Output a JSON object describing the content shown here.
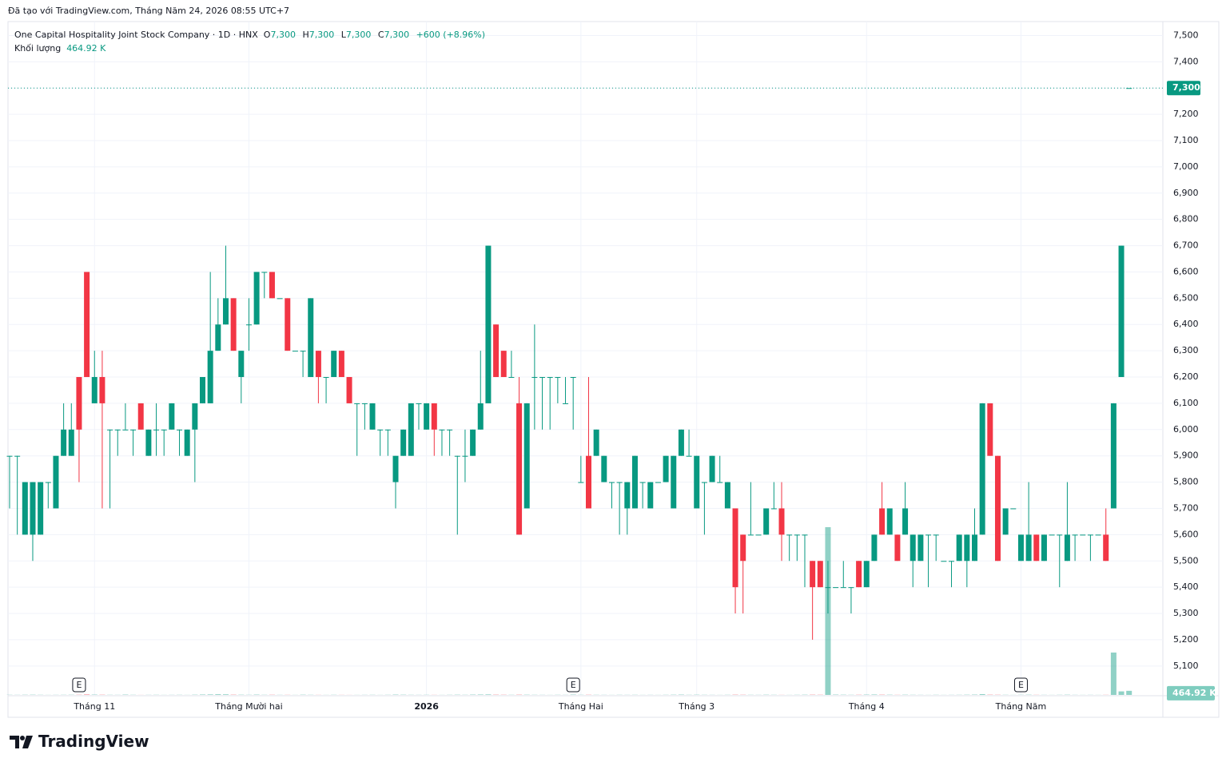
{
  "header": {
    "created": "Đã tạo với TradingView.com, Tháng Năm 24, 2026 08:55 UTC+7"
  },
  "legend": {
    "symbol": "One Capital Hospitality Joint Stock Company · 1D · HNX",
    "open": {
      "label": "O",
      "value": "7,300"
    },
    "high": {
      "label": "H",
      "value": "7,300"
    },
    "low": {
      "label": "L",
      "value": "7,300"
    },
    "close": {
      "label": "C",
      "value": "7,300"
    },
    "change": "+600 (+8.96%)",
    "volume_label": "Khối lượng",
    "volume_value": "464.92 K"
  },
  "footer": {
    "brand": "TradingView"
  },
  "chart_data": {
    "type": "candlestick",
    "up_color": "#089981",
    "down_color": "#f23645",
    "grid": true,
    "ylim": [
      4990,
      7550
    ],
    "yticks": [
      {
        "value": 5100,
        "label": "5,100"
      },
      {
        "value": 5200,
        "label": "5,200"
      },
      {
        "value": 5300,
        "label": "5,300"
      },
      {
        "value": 5400,
        "label": "5,400"
      },
      {
        "value": 5500,
        "label": "5,500"
      },
      {
        "value": 5600,
        "label": "5,600"
      },
      {
        "value": 5700,
        "label": "5,700"
      },
      {
        "value": 5800,
        "label": "5,800"
      },
      {
        "value": 5900,
        "label": "5,900"
      },
      {
        "value": 6000,
        "label": "6,000"
      },
      {
        "value": 6100,
        "label": "6,100"
      },
      {
        "value": 6200,
        "label": "6,200"
      },
      {
        "value": 6300,
        "label": "6,300"
      },
      {
        "value": 6400,
        "label": "6,400"
      },
      {
        "value": 6500,
        "label": "6,500"
      },
      {
        "value": 6600,
        "label": "6,600"
      },
      {
        "value": 6700,
        "label": "6,700"
      },
      {
        "value": 6800,
        "label": "6,800"
      },
      {
        "value": 6900,
        "label": "6,900"
      },
      {
        "value": 7000,
        "label": "7,000"
      },
      {
        "value": 7100,
        "label": "7,100"
      },
      {
        "value": 7200,
        "label": "7,200"
      },
      {
        "value": 7300,
        "label": "7,300"
      },
      {
        "value": 7400,
        "label": "7,400"
      },
      {
        "value": 7500,
        "label": "7,500"
      }
    ],
    "xticks": [
      {
        "value": 11,
        "label": "Tháng 11"
      },
      {
        "value": 31,
        "label": "Tháng Mười hai"
      },
      {
        "value": 54,
        "label": "2026"
      },
      {
        "value": 74,
        "label": "Tháng Hai"
      },
      {
        "value": 89,
        "label": "Tháng 3"
      },
      {
        "value": 111,
        "label": "Tháng 4"
      },
      {
        "value": 131,
        "label": "Tháng Năm"
      }
    ],
    "events": [
      {
        "value": 9,
        "label": "E"
      },
      {
        "value": 73,
        "label": "E"
      },
      {
        "value": 131,
        "label": "E"
      }
    ],
    "price_line": {
      "value": 7300,
      "label": "7,300"
    },
    "open": [
      5900,
      5900,
      5600,
      5600,
      5600,
      5800,
      5700,
      5900,
      5900,
      6200,
      6600,
      6100,
      6200,
      6000,
      6000,
      6000,
      6000,
      6100,
      5900,
      6000,
      6000,
      6000,
      6000,
      5900,
      6000,
      6100,
      6100,
      6300,
      6400,
      6500,
      6200,
      6400,
      6400,
      6600,
      6600,
      6500,
      6500,
      6300,
      6300,
      6200,
      6300,
      6200,
      6200,
      6300,
      6200,
      6100,
      6100,
      6000,
      6000,
      6000,
      5800,
      5900,
      5900,
      6100,
      6000,
      6100,
      6000,
      6000,
      5900,
      5900,
      5900,
      6000,
      6100,
      6400,
      6300,
      6200,
      6100,
      5700,
      6200,
      6200,
      6200,
      6200,
      6100,
      6200,
      5800,
      5900,
      5900,
      5800,
      5800,
      5800,
      5700,
      5700,
      5800,
      5700,
      5800,
      5800,
      5700,
      5900,
      5900,
      5700,
      5800,
      5800,
      5800,
      5700,
      5700,
      5600,
      5600,
      5600,
      5600,
      5700,
      5700,
      5600,
      5600,
      5600,
      5500,
      5500,
      5400,
      5400,
      5400,
      5400,
      5500,
      5400,
      5500,
      5700,
      5600,
      5600,
      5600,
      5500,
      5500,
      5600,
      5600,
      5500,
      5500,
      5500,
      5500,
      5500,
      5600,
      6100,
      5900,
      5600,
      5700,
      5500,
      5500,
      5600,
      5500,
      5600,
      5600,
      5500,
      5600,
      5600,
      5600,
      5600,
      5600,
      5700,
      6200,
      7300
    ],
    "high": [
      5900,
      5900,
      5800,
      5800,
      5800,
      5800,
      5900,
      6100,
      6100,
      6200,
      6600,
      6300,
      6300,
      6000,
      6000,
      6100,
      6000,
      6100,
      6000,
      6100,
      6000,
      6100,
      6000,
      6000,
      6100,
      6200,
      6600,
      6500,
      6700,
      6500,
      6300,
      6500,
      6600,
      6600,
      6600,
      6500,
      6500,
      6300,
      6300,
      6500,
      6300,
      6200,
      6300,
      6300,
      6200,
      6100,
      6100,
      6100,
      6000,
      6000,
      5900,
      6000,
      6100,
      6100,
      6100,
      6100,
      6000,
      6000,
      5900,
      6000,
      6000,
      6300,
      6700,
      6400,
      6300,
      6300,
      6200,
      6100,
      6400,
      6200,
      6200,
      6200,
      6200,
      6200,
      5900,
      6200,
      6000,
      5900,
      5800,
      5800,
      5800,
      5900,
      5800,
      5800,
      5800,
      5900,
      5900,
      6000,
      6000,
      5900,
      5800,
      5900,
      5900,
      5800,
      5700,
      5600,
      5800,
      5600,
      5700,
      5800,
      5800,
      5600,
      5600,
      5600,
      5500,
      5500,
      5500,
      5400,
      5500,
      5400,
      5500,
      5500,
      5600,
      5800,
      5700,
      5600,
      5800,
      5600,
      5600,
      5600,
      5600,
      5500,
      5500,
      5600,
      5600,
      5700,
      6100,
      6100,
      5900,
      5700,
      5700,
      5600,
      5800,
      5600,
      5600,
      5600,
      5600,
      5800,
      5600,
      5600,
      5600,
      5600,
      5700,
      6100,
      6700,
      7300
    ],
    "low": [
      5700,
      5600,
      5600,
      5500,
      5600,
      5700,
      5700,
      5900,
      5900,
      5800,
      6200,
      6100,
      5700,
      5700,
      5900,
      6000,
      5900,
      6000,
      5900,
      5900,
      5900,
      6000,
      5900,
      5900,
      5800,
      6100,
      6100,
      6300,
      6400,
      6300,
      6100,
      6300,
      6400,
      6500,
      6500,
      6500,
      6300,
      6300,
      6200,
      6200,
      6100,
      6100,
      6200,
      6200,
      6100,
      5900,
      6000,
      6000,
      5900,
      5900,
      5700,
      5900,
      5900,
      6000,
      6000,
      5900,
      5900,
      5900,
      5600,
      5800,
      5900,
      6000,
      6100,
      6200,
      6200,
      6200,
      5600,
      5700,
      6000,
      6000,
      6000,
      6100,
      6100,
      6000,
      5800,
      5700,
      5900,
      5800,
      5700,
      5600,
      5600,
      5700,
      5700,
      5700,
      5800,
      5800,
      5700,
      5900,
      5900,
      5700,
      5600,
      5800,
      5800,
      5700,
      5300,
      5300,
      5600,
      5600,
      5600,
      5700,
      5500,
      5500,
      5500,
      5400,
      5200,
      5400,
      5300,
      5400,
      5400,
      5300,
      5400,
      5400,
      5500,
      5600,
      5600,
      5500,
      5600,
      5400,
      5500,
      5400,
      5500,
      5500,
      5400,
      5500,
      5400,
      5500,
      5600,
      5900,
      5500,
      5600,
      5700,
      5500,
      5500,
      5500,
      5500,
      5600,
      5400,
      5500,
      5500,
      5600,
      5500,
      5600,
      5500,
      5700,
      6200,
      7300
    ],
    "close": [
      5900,
      5900,
      5800,
      5800,
      5800,
      5800,
      5900,
      6000,
      6000,
      6000,
      6200,
      6200,
      6100,
      6000,
      6000,
      6000,
      6000,
      6000,
      6000,
      6000,
      6000,
      6100,
      6000,
      6000,
      6100,
      6200,
      6300,
      6400,
      6500,
      6300,
      6300,
      6400,
      6600,
      6600,
      6500,
      6500,
      6300,
      6300,
      6300,
      6500,
      6200,
      6200,
      6300,
      6200,
      6100,
      6100,
      6100,
      6100,
      6000,
      6000,
      5900,
      6000,
      6100,
      6100,
      6100,
      6000,
      6000,
      6000,
      5900,
      5900,
      6000,
      6100,
      6700,
      6200,
      6200,
      6200,
      5600,
      6100,
      6200,
      6200,
      6200,
      6200,
      6100,
      6200,
      5800,
      5700,
      6000,
      5900,
      5800,
      5800,
      5800,
      5900,
      5800,
      5800,
      5800,
      5900,
      5900,
      6000,
      5900,
      5900,
      5800,
      5900,
      5800,
      5800,
      5400,
      5500,
      5600,
      5600,
      5700,
      5700,
      5600,
      5600,
      5600,
      5600,
      5400,
      5400,
      5400,
      5400,
      5400,
      5400,
      5400,
      5500,
      5600,
      5600,
      5700,
      5500,
      5700,
      5600,
      5600,
      5600,
      5600,
      5500,
      5500,
      5600,
      5600,
      5600,
      6100,
      5900,
      5500,
      5700,
      5700,
      5600,
      5600,
      5500,
      5600,
      5600,
      5600,
      5600,
      5600,
      5600,
      5600,
      5600,
      5500,
      6100,
      6700,
      7300
    ],
    "volume": [
      20000,
      15000,
      25000,
      30000,
      20000,
      10000,
      15000,
      20000,
      25000,
      30000,
      70000,
      40000,
      35000,
      20000,
      15000,
      40000,
      20000,
      10000,
      15000,
      20000,
      10000,
      15000,
      20000,
      10000,
      30000,
      50000,
      60000,
      80000,
      70000,
      40000,
      30000,
      20000,
      40000,
      20000,
      30000,
      15000,
      20000,
      10000,
      30000,
      20000,
      15000,
      10000,
      20000,
      15000,
      10000,
      10000,
      15000,
      20000,
      10000,
      20000,
      40000,
      30000,
      20000,
      15000,
      20000,
      15000,
      10000,
      20000,
      30000,
      20000,
      40000,
      50000,
      60000,
      40000,
      30000,
      20000,
      40000,
      30000,
      20000,
      15000,
      10000,
      20000,
      15000,
      40000,
      20000,
      30000,
      20000,
      15000,
      10000,
      20000,
      15000,
      20000,
      10000,
      15000,
      10000,
      20000,
      30000,
      40000,
      20000,
      30000,
      20000,
      15000,
      10000,
      20000,
      40000,
      30000,
      20000,
      15000,
      30000,
      20000,
      15000,
      10000,
      20000,
      30000,
      40000,
      30000,
      19000000,
      40000,
      30000,
      20000,
      30000,
      40000,
      50000,
      40000,
      30000,
      20000,
      30000,
      20000,
      15000,
      10000,
      20000,
      10000,
      15000,
      20000,
      30000,
      40000,
      90000,
      40000,
      30000,
      20000,
      10000,
      20000,
      30000,
      20000,
      15000,
      10000,
      20000,
      30000,
      15000,
      10000,
      15000,
      10000,
      20000,
      4800000,
      400000,
      464920
    ]
  }
}
